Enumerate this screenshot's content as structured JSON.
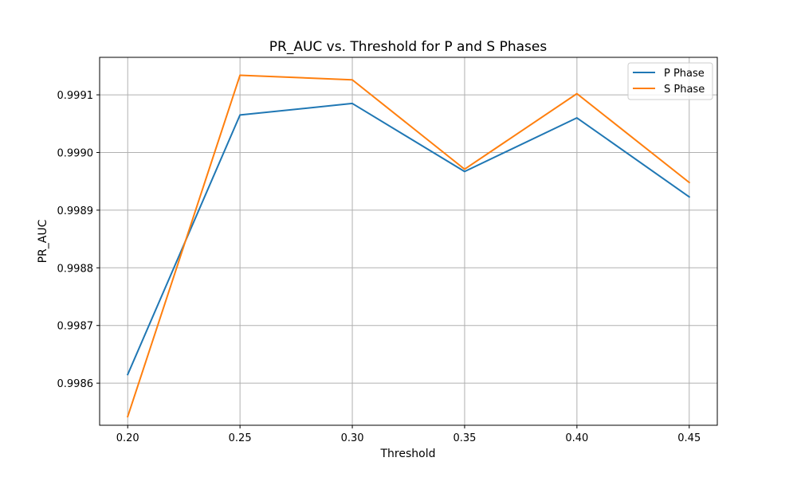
{
  "chart_data": {
    "type": "line",
    "title": "PR_AUC vs. Threshold for P and S Phases",
    "xlabel": "Threshold",
    "ylabel": "PR_AUC",
    "x": [
      0.2,
      0.25,
      0.3,
      0.35,
      0.4,
      0.45
    ],
    "x_tick_labels": [
      "0.20",
      "0.25",
      "0.30",
      "0.35",
      "0.40",
      "0.45"
    ],
    "y_ticks": [
      0.9986,
      0.9987,
      0.9988,
      0.9989,
      0.999,
      0.9991
    ],
    "y_tick_labels": [
      "0.9986",
      "0.9987",
      "0.9988",
      "0.9989",
      "0.9990",
      "0.9991"
    ],
    "xlim": [
      0.1875,
      0.4625
    ],
    "ylim": [
      0.998527,
      0.999165
    ],
    "grid": true,
    "legend_position": "top-right",
    "series": [
      {
        "name": "P Phase",
        "color": "#1f77b4",
        "values": [
          0.998615,
          0.999065,
          0.999085,
          0.998967,
          0.99906,
          0.998923
        ]
      },
      {
        "name": "S Phase",
        "color": "#ff7f0e",
        "values": [
          0.998542,
          0.999134,
          0.999126,
          0.998971,
          0.999102,
          0.998948
        ]
      }
    ]
  }
}
